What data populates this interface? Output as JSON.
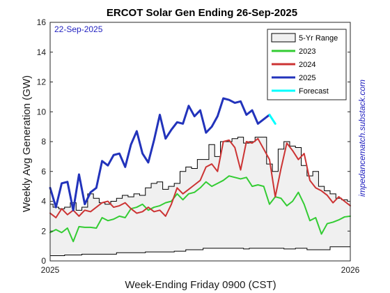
{
  "chart_data": {
    "type": "line",
    "title": "ERCOT Solar Gen Ending 26-Sep-2025",
    "xlabel": "Week-Ending Friday 0900 (CST)",
    "ylabel": "Weekly Avg Generation (GW)",
    "x_tick_labels": [
      "2025",
      "2026"
    ],
    "y_ticks": [
      0,
      2,
      4,
      6,
      8,
      10,
      12,
      14,
      16
    ],
    "ylim": [
      0,
      16
    ],
    "xlim": [
      0,
      52
    ],
    "annotation": "22-Sep-2025",
    "side_text": "impedancematch.substack.com",
    "annotation_color": "#1f1fbf",
    "side_text_color": "#1f1fbf",
    "legend_placement": "top-right",
    "legend": [
      {
        "label": "5-Yr Range",
        "kind": "range",
        "color": "#f0f0f0"
      },
      {
        "label": "2023",
        "kind": "line",
        "color": "#33cc33"
      },
      {
        "label": "2024",
        "kind": "line",
        "color": "#cc3333"
      },
      {
        "label": "2025",
        "kind": "line",
        "color": "#2233bb"
      },
      {
        "label": "Forecast",
        "kind": "line",
        "color": "#00ffff"
      }
    ],
    "range_lower": [
      0.35,
      0.35,
      0.35,
      0.4,
      0.4,
      0.4,
      0.45,
      0.45,
      0.45,
      0.45,
      0.45,
      0.45,
      0.55,
      0.55,
      0.55,
      0.55,
      0.55,
      0.6,
      0.6,
      0.6,
      0.6,
      0.6,
      0.65,
      0.65,
      0.75,
      0.75,
      0.75,
      0.85,
      0.85,
      0.85,
      0.85,
      0.85,
      0.85,
      0.85,
      0.8,
      0.85,
      0.85,
      0.85,
      0.85,
      0.85,
      0.85,
      0.8,
      0.8,
      0.85,
      0.85,
      0.75,
      0.75,
      0.75,
      0.75,
      0.95,
      0.95,
      0.95,
      0.95
    ],
    "range_upper": [
      3.8,
      3.6,
      3.5,
      3.6,
      3.9,
      3.4,
      3.6,
      4.5,
      4.2,
      3.9,
      3.8,
      4.0,
      4.2,
      4.4,
      4.3,
      4.5,
      4.4,
      4.9,
      5.2,
      5.3,
      4.8,
      5.0,
      5.2,
      6.0,
      6.3,
      6.2,
      6.8,
      6.8,
      7.8,
      7.0,
      8.0,
      8.0,
      8.2,
      8.3,
      7.9,
      8.0,
      8.3,
      8.3,
      6.5,
      6.0,
      7.5,
      8.0,
      7.7,
      7.6,
      6.4,
      5.7,
      6.0,
      5.0,
      4.7,
      4.5,
      4.2,
      4.1,
      4.0
    ],
    "series": [
      {
        "name": "2023",
        "color": "#33cc33",
        "x": [
          0,
          1,
          2,
          3,
          4,
          5,
          6,
          7,
          8,
          9,
          10,
          11,
          12,
          13,
          14,
          15,
          16,
          17,
          18,
          19,
          20,
          21,
          22,
          23,
          24,
          25,
          26,
          27,
          28,
          29,
          30,
          31,
          32,
          33,
          34,
          35,
          36,
          37,
          38,
          39,
          40,
          41,
          42,
          43,
          44,
          45,
          46,
          47,
          48,
          49,
          50,
          51,
          52
        ],
        "values": [
          1.9,
          2.1,
          1.9,
          2.2,
          1.3,
          2.3,
          2.25,
          2.25,
          2.2,
          2.9,
          2.7,
          2.8,
          3.0,
          2.9,
          3.5,
          3.6,
          3.8,
          3.4,
          3.6,
          3.7,
          3.9,
          4.0,
          4.5,
          4.1,
          4.5,
          4.6,
          4.9,
          5.3,
          5.0,
          5.2,
          5.4,
          5.7,
          5.6,
          5.5,
          5.6,
          5.0,
          5.1,
          5.0,
          3.8,
          4.3,
          4.2,
          3.7,
          4.0,
          4.6,
          3.8,
          2.7,
          2.9,
          1.8,
          2.5,
          2.6,
          2.75,
          2.95,
          3.0
        ]
      },
      {
        "name": "2024",
        "color": "#cc3333",
        "x": [
          0,
          1,
          2,
          3,
          4,
          5,
          6,
          7,
          8,
          9,
          10,
          11,
          12,
          13,
          14,
          15,
          16,
          17,
          18,
          19,
          20,
          21,
          22,
          23,
          24,
          25,
          26,
          27,
          28,
          29,
          30,
          31,
          32,
          33,
          34,
          35,
          36,
          37,
          38,
          39,
          40,
          41,
          42,
          43,
          44,
          45,
          46,
          47,
          48,
          49,
          50,
          51,
          52
        ],
        "values": [
          3.2,
          2.9,
          3.5,
          3.1,
          3.4,
          3.0,
          3.4,
          3.3,
          3.6,
          3.9,
          4.0,
          3.6,
          3.7,
          3.9,
          3.5,
          3.2,
          3.3,
          3.6,
          3.3,
          3.4,
          3.0,
          3.8,
          4.9,
          4.5,
          4.8,
          5.1,
          5.4,
          6.3,
          6.5,
          6.0,
          8.0,
          8.1,
          7.6,
          6.1,
          8.0,
          7.9,
          8.2,
          7.5,
          6.8,
          4.3,
          6.2,
          7.9,
          7.4,
          6.8,
          7.2,
          5.4,
          4.9,
          4.7,
          4.4,
          3.9,
          4.3,
          4.0,
          3.7
        ]
      },
      {
        "name": "2025",
        "color": "#2233bb",
        "x": [
          0,
          1,
          2,
          3,
          4,
          5,
          6,
          7,
          8,
          9,
          10,
          11,
          12,
          13,
          14,
          15,
          16,
          17,
          18,
          19,
          20,
          21,
          22,
          23,
          24,
          25,
          26,
          27,
          28,
          29,
          30,
          31,
          32,
          33,
          34,
          35,
          36,
          37,
          38,
          39
        ],
        "values": [
          4.9,
          3.6,
          5.2,
          5.3,
          3.4,
          5.8,
          3.8,
          4.6,
          4.9,
          6.7,
          6.4,
          7.1,
          7.2,
          6.3,
          7.8,
          8.7,
          7.2,
          6.6,
          8.1,
          9.8,
          8.2,
          8.8,
          9.3,
          9.2,
          10.4,
          9.7,
          10.1,
          8.6,
          9.0,
          9.7,
          10.9,
          10.8,
          10.6,
          10.7,
          9.8,
          10.1,
          9.2,
          9.5,
          9.8,
          null
        ],
        "line_width": 3
      },
      {
        "name": "Forecast",
        "color": "#00ffff",
        "x": [
          38,
          39
        ],
        "values": [
          9.8,
          9.2
        ],
        "line_width": 3
      }
    ]
  }
}
